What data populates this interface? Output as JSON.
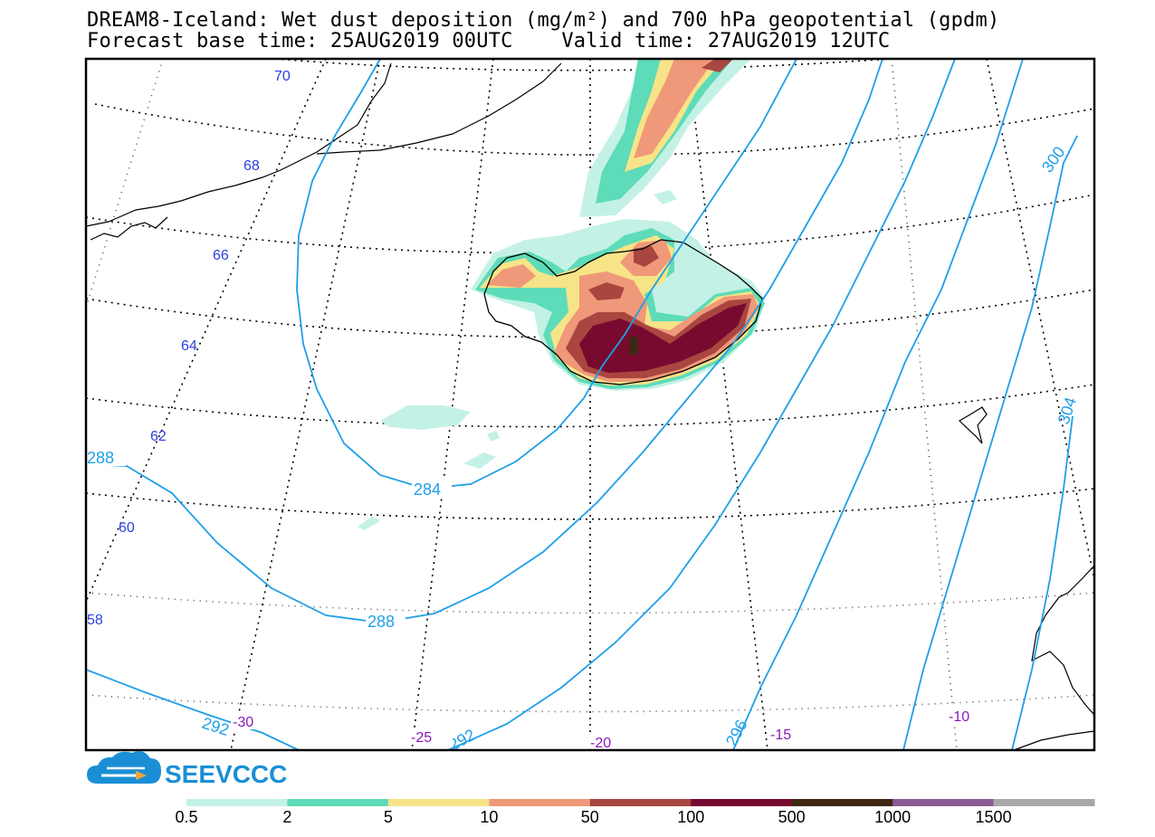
{
  "title": {
    "line1": "DREAM8-Iceland: Wet dust deposition (mg/m²) and 700 hPa geopotential (gpdm)",
    "line2": "Forecast base time: 25AUG2019 00UTC    Valid time: 27AUG2019 12UTC"
  },
  "latitude_labels": [
    "70",
    "68",
    "66",
    "64",
    "62",
    "60",
    "58"
  ],
  "longitude_labels": [
    "-30",
    "-25",
    "-20",
    "-15",
    "-10"
  ],
  "isoline_labels": [
    "284",
    "288",
    "288",
    "292",
    "292",
    "296",
    "300",
    "304"
  ],
  "legend": {
    "labels": [
      "0.5",
      "2",
      "5",
      "10",
      "50",
      "100",
      "500",
      "1000",
      "1500"
    ],
    "colors": [
      "#c4f1e6",
      "#5edbb8",
      "#f7e488",
      "#f0987a",
      "#a8463f",
      "#780a2f",
      "#3e2814",
      "#8a5a94",
      "#a8a8a8"
    ]
  },
  "logo": {
    "text": "SEEVCCC",
    "icon": "cloud-icon",
    "color": "#1a8fd6"
  },
  "colors": {
    "isoline": "#1f9fe8",
    "lat_label": "#2a3fe0",
    "lon_label": "#8a1ab8"
  }
}
